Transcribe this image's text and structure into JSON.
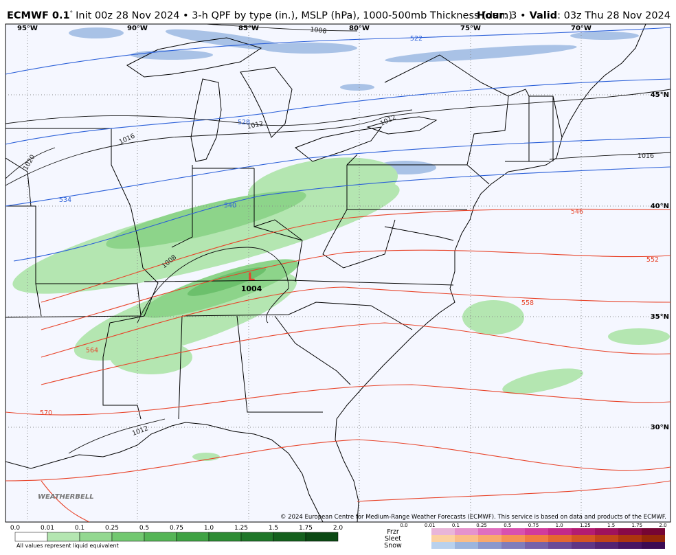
{
  "header": {
    "model": "ECMWF 0.1",
    "degree": "°",
    "description": "Init 00z 28 Nov 2024 • 3-h QPF by type (in.), MSLP (hPa), 1000-500mb Thickness (dam)",
    "hour_label": "Hour",
    "hour": ": 3 •",
    "valid_label": "Valid",
    "valid": ": 03z Thu 28 Nov 2024"
  },
  "map": {
    "longitudes": [
      "95°W",
      "90°W",
      "85°W",
      "80°W",
      "75°W",
      "70°W"
    ],
    "latitudes": [
      "45°N",
      "40°N",
      "35°N",
      "30°N"
    ],
    "isobar_labels": [
      "1008",
      "1012",
      "1016",
      "1020",
      "1012",
      "1016",
      "1008",
      "1012"
    ],
    "thickness_labels": [
      "522",
      "528",
      "534",
      "540",
      "546",
      "552",
      "558",
      "564",
      "570"
    ],
    "low": {
      "symbol": "L",
      "pressure": "1004"
    },
    "logo": "WEATHERBELL"
  },
  "legend": {
    "rain": {
      "ticks": [
        "0.0",
        "0.01",
        "0.1",
        "0.25",
        "0.5",
        "0.75",
        "1.0",
        "1.25",
        "1.5",
        "1.75",
        "2.0"
      ],
      "colors": [
        "#ffffff",
        "#b4e6b1",
        "#93d890",
        "#72c870",
        "#55b556",
        "#3fa243",
        "#2e8c34",
        "#1f7628",
        "#14601d",
        "#0b4913"
      ],
      "note": "All values represent liquid equivalent"
    },
    "winter": {
      "ticks": [
        "0.0",
        "0.01",
        "0.1",
        "0.25",
        "0.5",
        "0.75",
        "1.0",
        "1.25",
        "1.5",
        "1.75",
        "2.0"
      ],
      "types": [
        {
          "name": "Frzr",
          "colors": [
            "#e9b5d9",
            "#e592cd",
            "#df6ebf",
            "#d851af",
            "#d13b9d",
            "#c3298a",
            "#b31c72",
            "#9f125c",
            "#890a48",
            "#760534"
          ]
        },
        {
          "name": "Sleet",
          "colors": [
            "#fcd1a1",
            "#fbbd86",
            "#f9a86c",
            "#f69253",
            "#f27c40",
            "#e56730",
            "#d55523",
            "#c24418",
            "#ad350f",
            "#952708"
          ]
        },
        {
          "name": "Snow",
          "colors": [
            "#b9d1ed",
            "#9cb5dd",
            "#8b98cc",
            "#807dbb",
            "#7662a9",
            "#6b4b97",
            "#5f3685",
            "#532473",
            "#471562",
            "#3c0b53"
          ]
        }
      ]
    }
  },
  "footer": {
    "copyright": "© 2024 European Centre for Medium-Range Weather Forecasts (ECMWF). This service is based on data and products of the ECMWF."
  }
}
